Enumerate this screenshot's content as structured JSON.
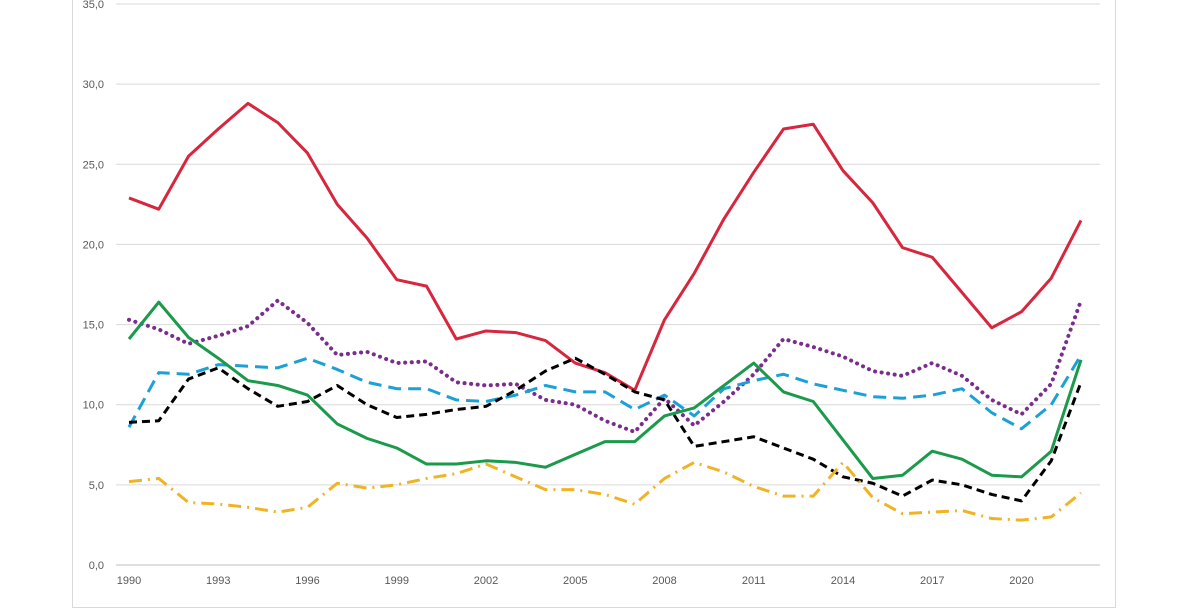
{
  "chart_data": {
    "type": "line",
    "title": "",
    "xlabel": "",
    "ylabel": "",
    "ylim": [
      0,
      35
    ],
    "xlim": [
      1990,
      2022
    ],
    "grid": true,
    "legend": "none",
    "y_ticks": [
      "0,0",
      "5,0",
      "10,0",
      "15,0",
      "20,0",
      "25,0",
      "30,0",
      "35,0"
    ],
    "x_ticks": [
      "1990",
      "1993",
      "1996",
      "1999",
      "2002",
      "2005",
      "2008",
      "2011",
      "2014",
      "2017",
      "2020"
    ],
    "x": [
      1990,
      1991,
      1992,
      1993,
      1994,
      1995,
      1996,
      1997,
      1998,
      1999,
      2000,
      2001,
      2002,
      2003,
      2004,
      2005,
      2006,
      2007,
      2008,
      2009,
      2010,
      2011,
      2012,
      2013,
      2014,
      2015,
      2016,
      2017,
      2018,
      2019,
      2020,
      2021,
      2022
    ],
    "series": [
      {
        "color": "#d7263d",
        "style": "solid",
        "values": [
          22.9,
          22.2,
          25.5,
          27.2,
          28.8,
          27.6,
          25.7,
          22.5,
          20.4,
          17.8,
          17.4,
          14.1,
          14.6,
          14.5,
          14.0,
          12.6,
          12.0,
          10.9,
          15.3,
          18.2,
          21.6,
          24.5,
          27.2,
          27.5,
          24.6,
          22.6,
          19.8,
          19.2,
          17.0,
          14.8,
          15.8,
          17.9,
          21.5
        ]
      },
      {
        "color": "#7b2d8e",
        "style": "dotted",
        "values": [
          15.3,
          14.7,
          13.8,
          14.3,
          14.9,
          16.5,
          15.1,
          13.1,
          13.3,
          12.6,
          12.7,
          11.4,
          11.2,
          11.3,
          10.3,
          10.0,
          9.0,
          8.3,
          10.4,
          8.7,
          10.2,
          11.9,
          14.1,
          13.6,
          13.0,
          12.1,
          11.8,
          12.6,
          11.8,
          10.3,
          9.4,
          11.3,
          16.5
        ]
      },
      {
        "color": "#1ba1d6",
        "style": "dashed",
        "values": [
          8.6,
          12.0,
          11.9,
          12.5,
          12.4,
          12.3,
          12.9,
          12.2,
          11.4,
          11.0,
          11.0,
          10.3,
          10.2,
          10.6,
          11.2,
          10.8,
          10.8,
          9.7,
          10.6,
          9.3,
          11.0,
          11.5,
          11.9,
          11.3,
          10.9,
          10.5,
          10.4,
          10.6,
          11.0,
          9.5,
          8.5,
          10.0,
          13.1
        ]
      },
      {
        "color": "#000000",
        "style": "short-dashed",
        "values": [
          8.9,
          9.0,
          11.6,
          12.3,
          11.0,
          9.9,
          10.2,
          11.2,
          10.0,
          9.2,
          9.4,
          9.7,
          9.9,
          10.9,
          12.1,
          12.9,
          11.9,
          10.8,
          10.3,
          7.4,
          7.7,
          8.0,
          7.3,
          6.6,
          5.5,
          5.1,
          4.3,
          5.3,
          5.0,
          4.4,
          4.0,
          6.5,
          11.4
        ]
      },
      {
        "color": "#1a9a4a",
        "style": "solid",
        "values": [
          14.1,
          16.4,
          14.2,
          12.9,
          11.5,
          11.2,
          10.6,
          8.8,
          7.9,
          7.3,
          6.3,
          6.3,
          6.5,
          6.4,
          6.1,
          6.9,
          7.7,
          7.7,
          9.3,
          9.8,
          11.2,
          12.6,
          10.8,
          10.2,
          7.8,
          5.4,
          5.6,
          7.1,
          6.6,
          5.6,
          5.5,
          7.1,
          12.8
        ]
      },
      {
        "color": "#f0b323",
        "style": "dash-dot",
        "values": [
          5.2,
          5.4,
          3.9,
          3.8,
          3.6,
          3.3,
          3.6,
          5.1,
          4.8,
          5.0,
          5.4,
          5.7,
          6.3,
          5.5,
          4.7,
          4.7,
          4.4,
          3.8,
          5.4,
          6.4,
          5.8,
          4.9,
          4.3,
          4.3,
          6.4,
          4.2,
          3.2,
          3.3,
          3.4,
          2.9,
          2.8,
          3.0,
          4.5
        ]
      }
    ]
  }
}
